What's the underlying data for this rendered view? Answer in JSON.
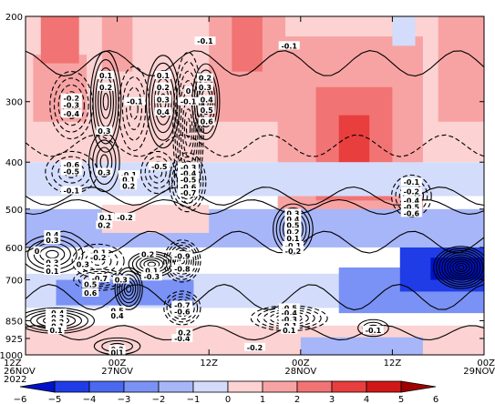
{
  "chart_data": {
    "type": "heatmap",
    "title": "",
    "xlabel": "",
    "ylabel": "",
    "y_scale": "log",
    "ylim": [
      1000,
      200
    ],
    "y_ticks": [
      200,
      300,
      400,
      500,
      600,
      700,
      850,
      925,
      1000
    ],
    "y_tick_labels": [
      "200",
      "300",
      "400",
      "500",
      "600",
      "700",
      "850",
      "925",
      "1000"
    ],
    "x_ticks": [
      {
        "line1": "12Z",
        "line2": "26NOV",
        "line3": "2022"
      },
      {
        "line1": "00Z",
        "line2": "27NOV",
        "line3": ""
      },
      {
        "line1": "12Z",
        "line2": "",
        "line3": ""
      },
      {
        "line1": "00Z",
        "line2": "28NOV",
        "line3": ""
      },
      {
        "line1": "12Z",
        "line2": "",
        "line3": ""
      },
      {
        "line1": "00Z",
        "line2": "29NOV",
        "line3": ""
      }
    ],
    "x_hours": [
      0,
      12,
      24,
      36,
      48,
      60
    ],
    "colorbar": {
      "levels": [
        -6,
        -5,
        -4,
        -3,
        -2,
        -1,
        0,
        1,
        2,
        3,
        4,
        5,
        6
      ],
      "colors": [
        "#0012c8",
        "#1f3ce6",
        "#4a68f0",
        "#7a92f5",
        "#a7b6f8",
        "#d4dcfb",
        "#fcd2d2",
        "#f8a3a3",
        "#f27373",
        "#e83e3e",
        "#d01818",
        "#a00000"
      ]
    },
    "shaded_regions": [
      {
        "hour": [
          0,
          60
        ],
        "p": [
          200,
          400
        ],
        "value": 0.5
      },
      {
        "hour": [
          1,
          8
        ],
        "p": [
          240,
          330
        ],
        "value": 1.5
      },
      {
        "hour": [
          2,
          7
        ],
        "p": [
          200,
          250
        ],
        "value": 2.5
      },
      {
        "hour": [
          10,
          14
        ],
        "p": [
          200,
          260
        ],
        "value": 1.5
      },
      {
        "hour": [
          24,
          34
        ],
        "p": [
          200,
          330
        ],
        "value": 1.5
      },
      {
        "hour": [
          27,
          31
        ],
        "p": [
          200,
          260
        ],
        "value": 2.5
      },
      {
        "hour": [
          33,
          52
        ],
        "p": [
          220,
          560
        ],
        "value": 1.5
      },
      {
        "hour": [
          38,
          48
        ],
        "p": [
          280,
          480
        ],
        "value": 2.5
      },
      {
        "hour": [
          41,
          45
        ],
        "p": [
          320,
          420
        ],
        "value": 3.5
      },
      {
        "hour": [
          54,
          60
        ],
        "p": [
          200,
          330
        ],
        "value": 1.5
      },
      {
        "hour": [
          48,
          51
        ],
        "p": [
          200,
          230
        ],
        "value": -0.5
      },
      {
        "hour": [
          0,
          60
        ],
        "p": [
          400,
          470
        ],
        "value": -0.5
      },
      {
        "hour": [
          0,
          60
        ],
        "p": [
          500,
          600
        ],
        "value": -1.5
      },
      {
        "hour": [
          10,
          24
        ],
        "p": [
          490,
          560
        ],
        "value": 0.5
      },
      {
        "hour": [
          0,
          60
        ],
        "p": [
          680,
          800
        ],
        "value": -0.5
      },
      {
        "hour": [
          4,
          22
        ],
        "p": [
          700,
          790
        ],
        "value": -2.5
      },
      {
        "hour": [
          41,
          60
        ],
        "p": [
          660,
          820
        ],
        "value": -2.5
      },
      {
        "hour": [
          49,
          60
        ],
        "p": [
          600,
          740
        ],
        "value": -4.5
      },
      {
        "hour": [
          53,
          60
        ],
        "p": [
          630,
          700
        ],
        "value": -5.5
      },
      {
        "hour": [
          0,
          60
        ],
        "p": [
          870,
          1000
        ],
        "value": 0.5
      },
      {
        "hour": [
          36,
          52
        ],
        "p": [
          920,
          1000
        ],
        "value": -1.5
      }
    ],
    "contour_labels": [
      {
        "text": "0.1",
        "hour": 10.5,
        "p": 265
      },
      {
        "text": "0.2",
        "hour": 10.5,
        "p": 280
      },
      {
        "text": "-0.2",
        "hour": 6.0,
        "p": 295
      },
      {
        "text": "-0.3",
        "hour": 6.0,
        "p": 305
      },
      {
        "text": "-0.4",
        "hour": 6.0,
        "p": 318
      },
      {
        "text": "0.3",
        "hour": 10.3,
        "p": 345
      },
      {
        "text": "-0.1",
        "hour": 14.3,
        "p": 300
      },
      {
        "text": "0.1",
        "hour": 18.0,
        "p": 265
      },
      {
        "text": "0.2",
        "hour": 18.0,
        "p": 280
      },
      {
        "text": "0.3",
        "hour": 18.0,
        "p": 297
      },
      {
        "text": "0.4",
        "hour": 18.0,
        "p": 315
      },
      {
        "text": "0",
        "hour": 21.3,
        "p": 285
      },
      {
        "text": "-0.1",
        "hour": 21.3,
        "p": 300
      },
      {
        "text": "-0.1",
        "hour": 23.5,
        "p": 225
      },
      {
        "text": "0.2",
        "hour": 23.5,
        "p": 268
      },
      {
        "text": "0.3",
        "hour": 23.5,
        "p": 280
      },
      {
        "text": "0.4",
        "hour": 23.7,
        "p": 297
      },
      {
        "text": "0.5",
        "hour": 23.7,
        "p": 312
      },
      {
        "text": "0.6",
        "hour": 23.7,
        "p": 330
      },
      {
        "text": "-0.1",
        "hour": 34.5,
        "p": 230
      },
      {
        "text": "-0.6",
        "hour": 6.0,
        "p": 405
      },
      {
        "text": "-0.5",
        "hour": 6.0,
        "p": 418
      },
      {
        "text": "-0.1",
        "hour": 6.0,
        "p": 458
      },
      {
        "text": "0.3",
        "hour": 10.3,
        "p": 420
      },
      {
        "text": "-0.1",
        "hour": 13.5,
        "p": 425
      },
      {
        "text": "0.1",
        "hour": 13.5,
        "p": 435
      },
      {
        "text": "0.2",
        "hour": 13.5,
        "p": 448
      },
      {
        "text": "-0.5",
        "hour": 17.5,
        "p": 408
      },
      {
        "text": "-0.2",
        "hour": 13.0,
        "p": 520
      },
      {
        "text": "0.1",
        "hour": 10.5,
        "p": 520
      },
      {
        "text": "0.2",
        "hour": 10.3,
        "p": 540
      },
      {
        "text": "-0.3",
        "hour": 21.3,
        "p": 410
      },
      {
        "text": "-0.4",
        "hour": 21.3,
        "p": 422
      },
      {
        "text": "-0.5",
        "hour": 21.3,
        "p": 435
      },
      {
        "text": "-0.6",
        "hour": 21.3,
        "p": 450
      },
      {
        "text": "-0.7",
        "hour": 21.3,
        "p": 463
      },
      {
        "text": "0.3",
        "hour": 35.0,
        "p": 510
      },
      {
        "text": "0.4",
        "hour": 35.0,
        "p": 525
      },
      {
        "text": "0.5",
        "hour": 35.0,
        "p": 540
      },
      {
        "text": "0.2",
        "hour": 35.0,
        "p": 558
      },
      {
        "text": "0.1",
        "hour": 35.0,
        "p": 575
      },
      {
        "text": "-0.1",
        "hour": 35.0,
        "p": 595
      },
      {
        "text": "-0.2",
        "hour": 35.0,
        "p": 610
      },
      {
        "text": "-0.1",
        "hour": 50.5,
        "p": 440
      },
      {
        "text": "-0.2",
        "hour": 50.5,
        "p": 460
      },
      {
        "text": "-0.4",
        "hour": 50.5,
        "p": 480
      },
      {
        "text": "-0.5",
        "hour": 50.5,
        "p": 495
      },
      {
        "text": "-0.6",
        "hour": 50.5,
        "p": 510
      },
      {
        "text": "0.4",
        "hour": 3.5,
        "p": 565
      },
      {
        "text": "0.3",
        "hour": 3.5,
        "p": 580
      },
      {
        "text": "0",
        "hour": 1.5,
        "p": 610
      },
      {
        "text": "-0.1",
        "hour": 9.5,
        "p": 615
      },
      {
        "text": "-0.2",
        "hour": 9.5,
        "p": 630
      },
      {
        "text": "0.3",
        "hour": 3.5,
        "p": 645
      },
      {
        "text": "0.2",
        "hour": 3.5,
        "p": 660
      },
      {
        "text": "0.1",
        "hour": 3.5,
        "p": 672
      },
      {
        "text": "0.3",
        "hour": 7.5,
        "p": 650
      },
      {
        "text": "-0.7",
        "hour": 9.7,
        "p": 695
      },
      {
        "text": "0.5",
        "hour": 8.5,
        "p": 715
      },
      {
        "text": "0.6",
        "hour": 8.5,
        "p": 745
      },
      {
        "text": "0.3",
        "hour": 12.5,
        "p": 700
      },
      {
        "text": "0.2",
        "hour": 16.0,
        "p": 620
      },
      {
        "text": "0.1",
        "hour": 16.5,
        "p": 670
      },
      {
        "text": "-0.3",
        "hour": 16.5,
        "p": 690
      },
      {
        "text": "0.5",
        "hour": 12.0,
        "p": 810
      },
      {
        "text": "0.4",
        "hour": 12.0,
        "p": 830
      },
      {
        "text": "-0.9",
        "hour": 20.5,
        "p": 625
      },
      {
        "text": "-0.8",
        "hour": 20.5,
        "p": 665
      },
      {
        "text": "-0.7",
        "hour": 20.5,
        "p": 790
      },
      {
        "text": "-0.6",
        "hour": 20.5,
        "p": 815
      },
      {
        "text": "-0.4",
        "hour": 4.0,
        "p": 820
      },
      {
        "text": "-0.3",
        "hour": 4.0,
        "p": 838
      },
      {
        "text": "-0.2",
        "hour": 4.0,
        "p": 855
      },
      {
        "text": "-0.1",
        "hour": 4.0,
        "p": 872
      },
      {
        "text": "0.1",
        "hour": 4.0,
        "p": 890
      },
      {
        "text": "-0.4",
        "hour": 20.5,
        "p": 925
      },
      {
        "text": "0.2",
        "hour": 20.8,
        "p": 900
      },
      {
        "text": "0.2",
        "hour": 12.0,
        "p": 975
      },
      {
        "text": "0.1",
        "hour": 12.0,
        "p": 990
      },
      {
        "text": "-0.2",
        "hour": 30.0,
        "p": 965
      },
      {
        "text": "-0.5",
        "hour": 34.5,
        "p": 800
      },
      {
        "text": "-0.4",
        "hour": 34.5,
        "p": 820
      },
      {
        "text": "-0.3",
        "hour": 34.5,
        "p": 845
      },
      {
        "text": "-0.1",
        "hour": 34.5,
        "p": 870
      },
      {
        "text": "0.1",
        "hour": 34.5,
        "p": 890
      },
      {
        "text": "-0.1",
        "hour": 45.5,
        "p": 890
      }
    ]
  }
}
